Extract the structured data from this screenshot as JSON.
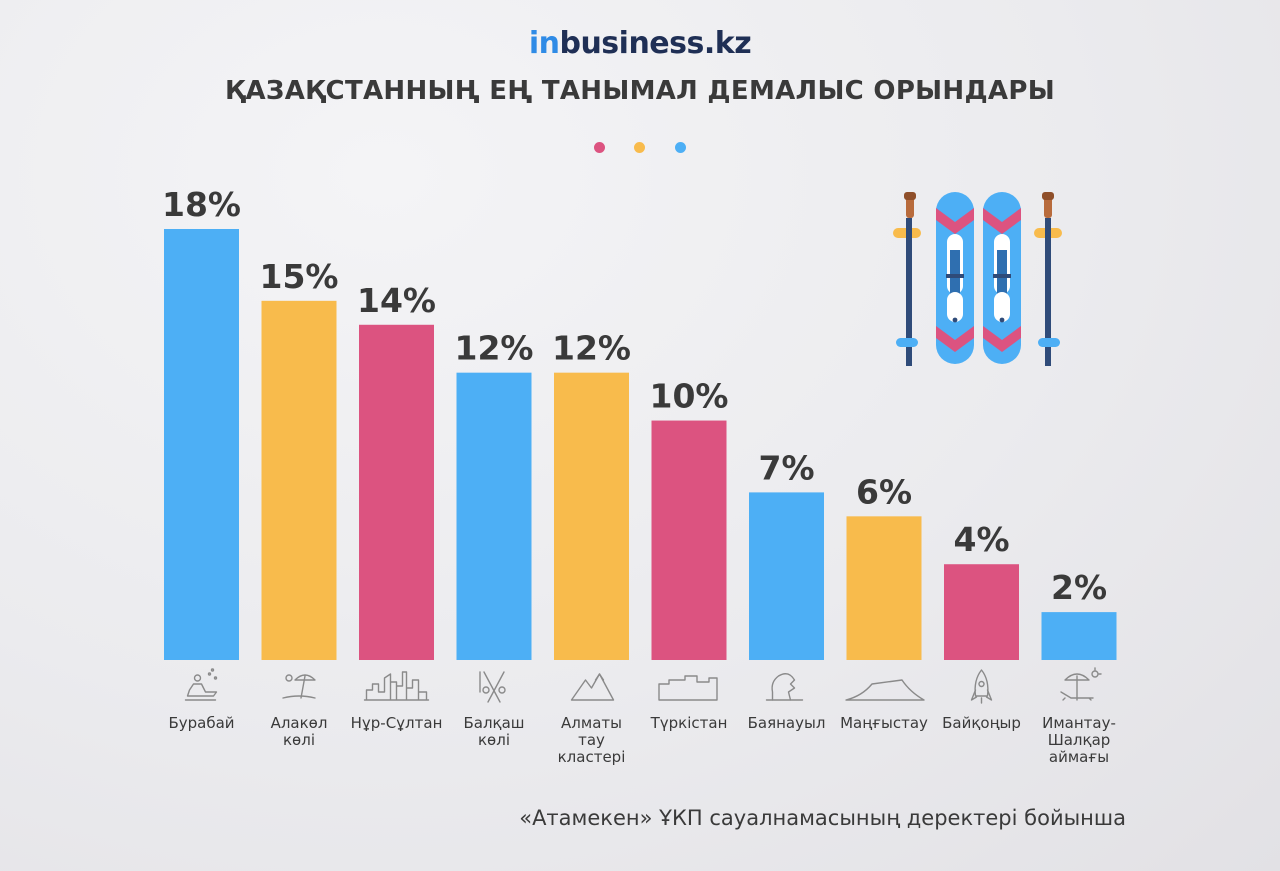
{
  "header": {
    "logo_prefix": "in",
    "logo_suffix": "business.kz",
    "title": "ҚАЗАҚСТАННЫҢ ЕҢ ТАНЫМАЛ ДЕМАЛЫС ОРЫНДАРЫ"
  },
  "palette": {
    "blue": "#4daff5",
    "yellow": "#f8bb4c",
    "pink": "#dc5380"
  },
  "chart_data": {
    "type": "bar",
    "title": "ҚАЗАҚСТАННЫҢ ЕҢ ТАНЫМАЛ ДЕМАЛЫС ОРЫНДАРЫ",
    "xlabel": "",
    "ylabel": "",
    "ylim": [
      0,
      18
    ],
    "grid": false,
    "categories": [
      [
        "Бурабай"
      ],
      [
        "Алакөл",
        "көлі"
      ],
      [
        "Нұр-Сұлтан"
      ],
      [
        "Балқаш",
        "көлі"
      ],
      [
        "Алматы",
        "тау",
        "кластері"
      ],
      [
        "Түркістан"
      ],
      [
        "Баянауыл"
      ],
      [
        "Маңғыстау"
      ],
      [
        "Байқоңыр"
      ],
      [
        "Имантау-",
        "Шалқар",
        "аймағы"
      ]
    ],
    "values": [
      18,
      15,
      14,
      12,
      12,
      10,
      7,
      6,
      4,
      2
    ],
    "value_labels": [
      "18%",
      "15%",
      "14%",
      "12%",
      "12%",
      "10%",
      "7%",
      "6%",
      "4%",
      "2%"
    ],
    "bar_colors": [
      "#4daff5",
      "#f8bb4c",
      "#dc5380",
      "#4daff5",
      "#f8bb4c",
      "#dc5380",
      "#4daff5",
      "#f8bb4c",
      "#dc5380",
      "#4daff5"
    ],
    "icons": [
      "snowmobile-icon",
      "beach-umbrella-icon",
      "city-skyline-icon",
      "fishing-rods-icon",
      "mountains-icon",
      "fortress-icon",
      "rock-face-icon",
      "plateau-icon",
      "rocket-icon",
      "sun-lounger-icon"
    ]
  },
  "footer": {
    "source": "«Атамекен» ҰКП сауалнамасының деректері бойынша"
  }
}
